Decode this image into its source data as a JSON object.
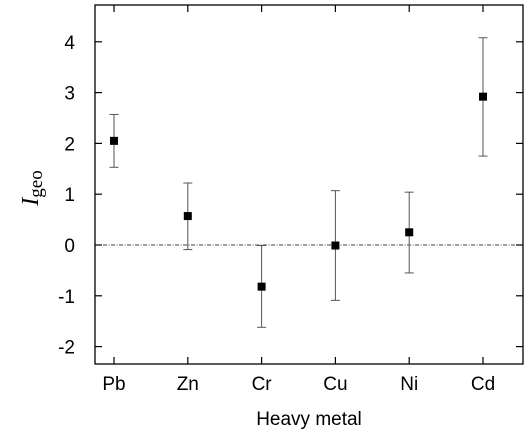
{
  "chart_data": {
    "type": "scatter",
    "title": "",
    "xlabel": "Heavy metal",
    "ylabel_main": "I",
    "ylabel_sub": "geo",
    "categories": [
      "Pb",
      "Zn",
      "Cr",
      "Cu",
      "Ni",
      "Cd"
    ],
    "values": [
      2.05,
      0.57,
      -0.82,
      -0.01,
      0.25,
      2.92
    ],
    "error_lower": [
      1.53,
      -0.09,
      -1.62,
      -1.09,
      -0.55,
      1.75
    ],
    "error_upper": [
      2.57,
      1.22,
      -0.01,
      1.07,
      1.04,
      4.08
    ],
    "ylim": [
      -2.3,
      4.6
    ],
    "yticks": [
      "-2",
      "-1",
      "0",
      "1",
      "2",
      "3",
      "4"
    ],
    "reference_line": 0,
    "grid": false,
    "colors": {
      "marker": "#000000",
      "error_bar": "#555555",
      "reference_line": "#444444",
      "axis": "#000000"
    }
  }
}
